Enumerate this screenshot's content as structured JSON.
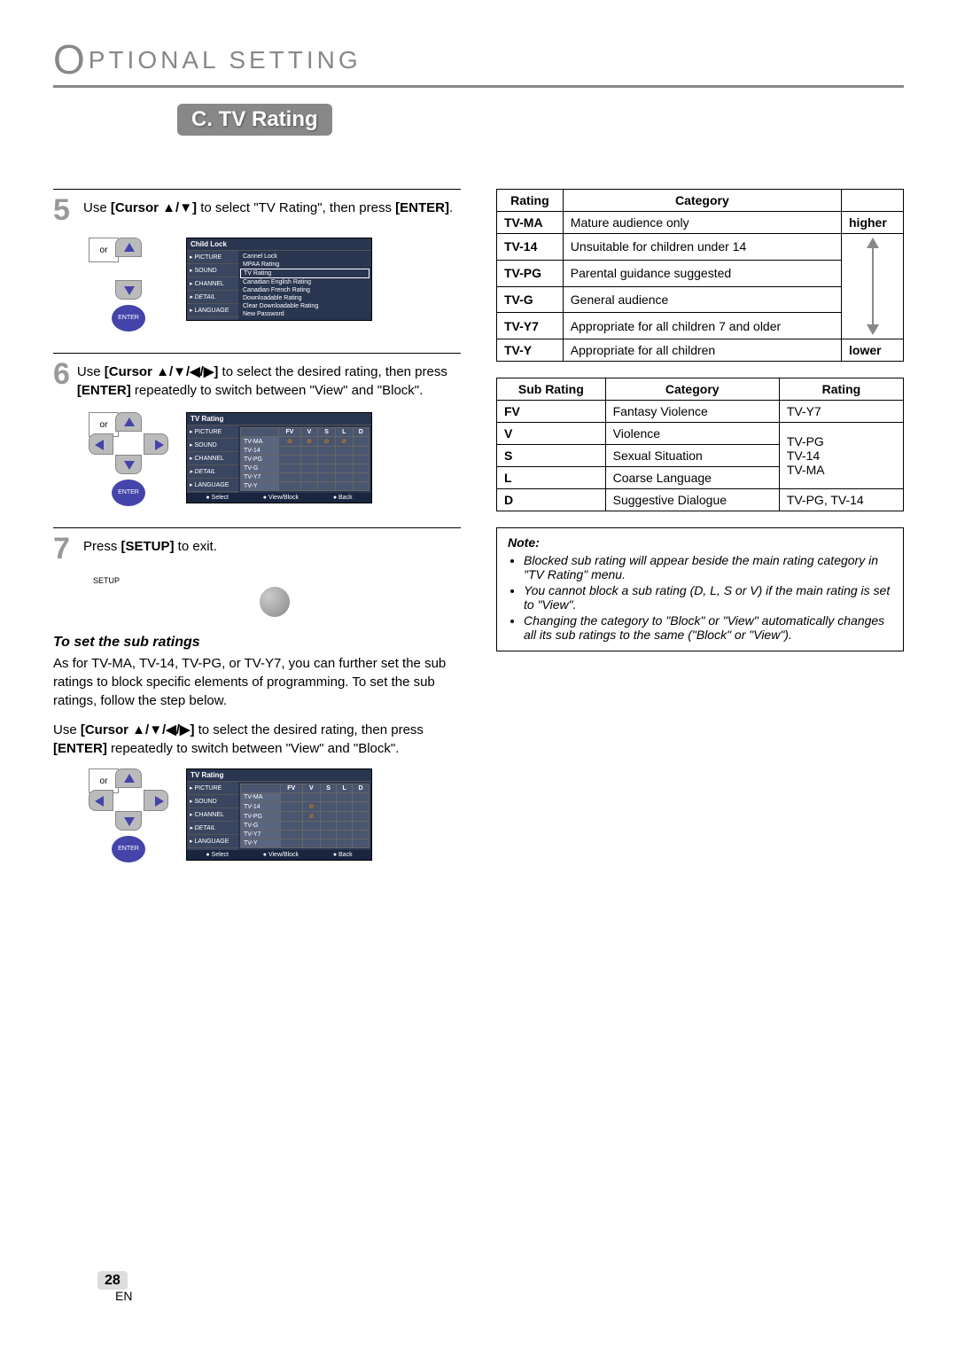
{
  "page_title_prefix_letter": "O",
  "page_title_rest": "PTIONAL  SETTING",
  "section_banner": "C. TV Rating",
  "steps": {
    "s5": {
      "num": "5",
      "text_before": "Use ",
      "bold1": "[Cursor ▲/▼]",
      "text_mid": " to select \"TV Rating\", then press ",
      "bold2": "[ENTER]",
      "text_after": "."
    },
    "s6": {
      "num": "6",
      "text_before": "Use ",
      "bold1": "[Cursor ▲/▼/◀/▶]",
      "text_mid": " to select the desired rating, then press ",
      "bold2": "[ENTER]",
      "text_after": " repeatedly to switch between \"View\" and \"Block\"."
    },
    "s7": {
      "num": "7",
      "text_before": "Press ",
      "bold1": "[SETUP]",
      "text_after": " to exit."
    }
  },
  "dpad": {
    "or": "or",
    "enter": "ENTER"
  },
  "setup_label": "SETUP",
  "osd1": {
    "title": "Child Lock",
    "side": [
      "PICTURE",
      "SOUND",
      "CHANNEL",
      "DETAIL",
      "LANGUAGE"
    ],
    "items": [
      "Cannel Lock",
      "MPAA Rating",
      "TV Rating",
      "Canadian English Rating",
      "Canadian French Rating",
      "Downloadable Rating",
      "Clear Downloadable Rating",
      "New Password"
    ],
    "highlighted_index": 2
  },
  "osd2": {
    "title": "TV Rating",
    "side": [
      "PICTURE",
      "SOUND",
      "CHANNEL",
      "DETAIL",
      "LANGUAGE"
    ],
    "cols": [
      "FV",
      "V",
      "S",
      "L",
      "D"
    ],
    "rows": [
      "TV-MA",
      "TV-14",
      "TV-PG",
      "TV-G",
      "TV-Y7",
      "TV-Y"
    ],
    "footer": [
      "Select",
      "View/Block",
      "Back"
    ],
    "blocks_a": {
      "0": [
        0,
        1,
        2,
        3
      ]
    }
  },
  "osd3": {
    "title": "TV Rating",
    "side": [
      "PICTURE",
      "SOUND",
      "CHANNEL",
      "DETAIL",
      "LANGUAGE"
    ],
    "cols": [
      "FV",
      "V",
      "S",
      "L",
      "D"
    ],
    "rows": [
      "TV-MA",
      "TV-14",
      "TV-PG",
      "TV-G",
      "TV-Y7",
      "TV-Y"
    ],
    "footer": [
      "Select",
      "View/Block",
      "Back"
    ],
    "blocks_b": {
      "1": [
        1
      ],
      "2": [
        1
      ]
    }
  },
  "sub_heading": "To set the sub ratings",
  "sub_text1": "As for TV-MA, TV-14, TV-PG, or TV-Y7, you can further set the sub ratings to block specific elements of programming. To set the sub ratings, follow the step below.",
  "sub_text2_pre": "Use ",
  "sub_text2_b1": "[Cursor ▲/▼/◀/▶]",
  "sub_text2_mid": " to select the desired rating, then press ",
  "sub_text2_b2": "[ENTER]",
  "sub_text2_post": " repeatedly to switch between \"View\" and \"Block\".",
  "rating_table": {
    "headers": [
      "Rating",
      "Category",
      ""
    ],
    "rows": [
      [
        "TV-MA",
        "Mature audience only"
      ],
      [
        "TV-14",
        "Unsuitable for children under 14"
      ],
      [
        "TV-PG",
        "Parental guidance suggested"
      ],
      [
        "TV-G",
        "General audience"
      ],
      [
        "TV-Y7",
        "Appropriate for all children 7 and older"
      ],
      [
        "TV-Y",
        "Appropriate for all children"
      ]
    ],
    "top_label": "higher",
    "bottom_label": "lower"
  },
  "subrating_table": {
    "headers": [
      "Sub Rating",
      "Category",
      "Rating"
    ],
    "rows": [
      [
        "FV",
        "Fantasy Violence",
        "TV-Y7"
      ],
      [
        "V",
        "Violence",
        ""
      ],
      [
        "S",
        "Sexual Situation",
        ""
      ],
      [
        "L",
        "Coarse Language",
        ""
      ],
      [
        "D",
        "Suggestive Dialogue",
        "TV-PG, TV-14"
      ]
    ],
    "merged_rating": "TV-PG\nTV-14\nTV-MA"
  },
  "note": {
    "title": "Note:",
    "items": [
      "Blocked sub rating will appear beside the main rating category in \"TV Rating\" menu.",
      "You cannot block a sub rating (D, L, S or V) if the main rating is set to \"View\".",
      "Changing the category to \"Block\" or \"View\" automatically changes all its sub ratings to the same (\"Block\" or \"View\")."
    ]
  },
  "page_number": "28",
  "page_lang": "EN"
}
